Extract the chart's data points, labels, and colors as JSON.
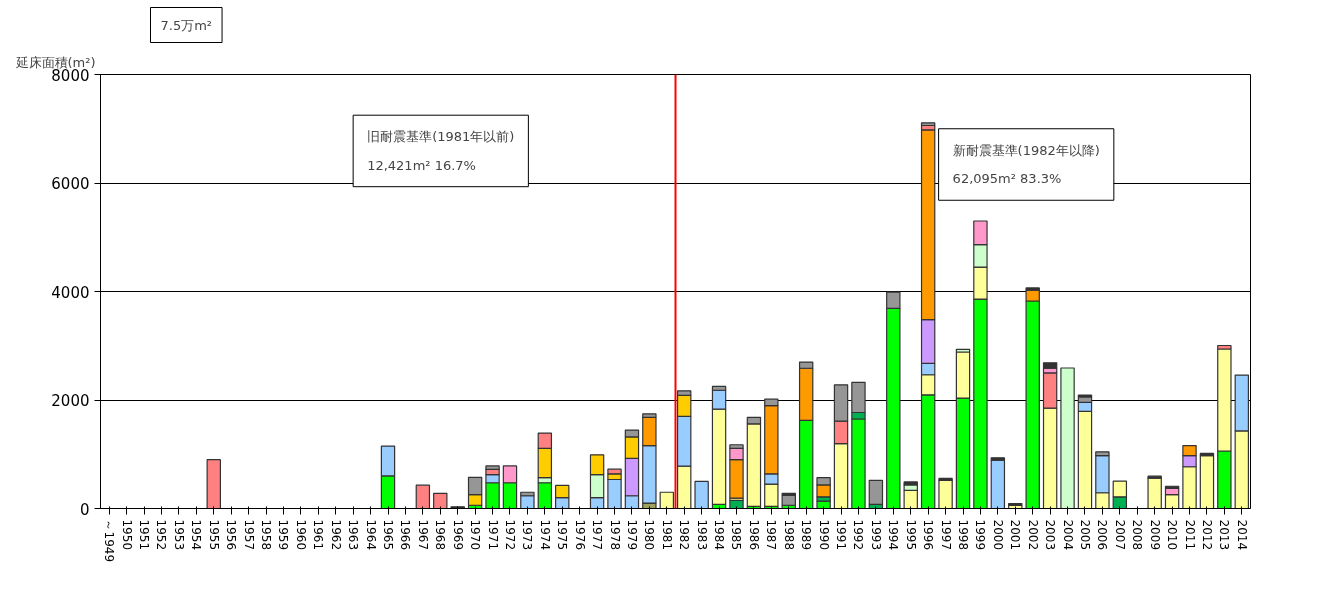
{
  "chart_data": {
    "type": "bar",
    "stacked": true,
    "title": "7.5万m²",
    "ylabel": "延床面積(m²)",
    "categories": [
      "～1949",
      "1950",
      "1951",
      "1952",
      "1953",
      "1954",
      "1955",
      "1956",
      "1957",
      "1958",
      "1959",
      "1960",
      "1961",
      "1962",
      "1963",
      "1964",
      "1965",
      "1966",
      "1967",
      "1968",
      "1969",
      "1970",
      "1971",
      "1972",
      "1973",
      "1974",
      "1975",
      "1976",
      "1977",
      "1978",
      "1979",
      "1980",
      "1981",
      "1982",
      "1983",
      "1984",
      "1985",
      "1986",
      "1987",
      "1988",
      "1989",
      "1990",
      "1991",
      "1992",
      "1993",
      "1994",
      "1995",
      "1996",
      "1997",
      "1998",
      "1999",
      "2000",
      "2001",
      "2002",
      "2003",
      "2004",
      "2005",
      "2006",
      "2007",
      "2008",
      "2009",
      "2010",
      "2011",
      "2012",
      "2013",
      "2014"
    ],
    "series": [
      {
        "color": "#00ff00",
        "values": [
          0,
          0,
          0,
          0,
          0,
          0,
          0,
          0,
          0,
          0,
          0,
          0,
          0,
          0,
          0,
          0,
          600,
          0,
          0,
          0,
          0,
          60,
          475,
          475,
          0,
          475,
          0,
          0,
          0,
          0,
          0,
          0,
          0,
          0,
          0,
          75,
          0,
          40,
          40,
          60,
          1625,
          135,
          0,
          1650,
          0,
          3690,
          0,
          2095,
          0,
          2035,
          3860,
          0,
          0,
          3825,
          0,
          0,
          0,
          0,
          0,
          0,
          0,
          0,
          0,
          0,
          1060,
          0
        ]
      },
      {
        "color": "#00b050",
        "values": [
          0,
          0,
          0,
          0,
          0,
          0,
          0,
          0,
          0,
          0,
          0,
          0,
          0,
          0,
          0,
          0,
          0,
          0,
          0,
          0,
          0,
          0,
          0,
          0,
          0,
          0,
          0,
          0,
          0,
          0,
          0,
          0,
          0,
          0,
          0,
          0,
          150,
          0,
          0,
          0,
          0,
          80,
          0,
          120,
          75,
          0,
          0,
          0,
          0,
          0,
          0,
          0,
          0,
          0,
          0,
          0,
          0,
          0,
          215,
          0,
          0,
          0,
          0,
          0,
          0,
          0
        ]
      },
      {
        "color": "#a0a060",
        "values": [
          0,
          0,
          0,
          0,
          0,
          0,
          0,
          0,
          0,
          0,
          0,
          0,
          0,
          0,
          0,
          0,
          0,
          0,
          0,
          0,
          0,
          0,
          0,
          0,
          0,
          0,
          0,
          0,
          0,
          0,
          0,
          100,
          0,
          0,
          0,
          0,
          0,
          0,
          0,
          0,
          0,
          0,
          0,
          0,
          0,
          0,
          0,
          0,
          0,
          0,
          0,
          0,
          0,
          0,
          0,
          0,
          0,
          0,
          0,
          0,
          0,
          0,
          0,
          0,
          0,
          0
        ]
      },
      {
        "color": "#ffff99",
        "values": [
          0,
          0,
          0,
          0,
          0,
          0,
          0,
          0,
          0,
          0,
          0,
          0,
          0,
          0,
          0,
          0,
          0,
          0,
          0,
          0,
          0,
          0,
          0,
          0,
          0,
          0,
          0,
          0,
          0,
          0,
          0,
          0,
          300,
          780,
          0,
          1755,
          40,
          1520,
          410,
          0,
          0,
          0,
          1195,
          0,
          0,
          0,
          335,
          370,
          520,
          850,
          590,
          0,
          55,
          0,
          1850,
          0,
          1790,
          290,
          290,
          0,
          560,
          255,
          770,
          975,
          1880,
          1430
        ]
      },
      {
        "color": "#99ccff",
        "values": [
          0,
          0,
          0,
          0,
          0,
          0,
          0,
          0,
          0,
          0,
          0,
          0,
          0,
          0,
          0,
          0,
          550,
          0,
          0,
          0,
          0,
          0,
          150,
          0,
          235,
          0,
          200,
          0,
          200,
          535,
          235,
          1060,
          0,
          920,
          500,
          350,
          0,
          0,
          190,
          0,
          0,
          0,
          0,
          0,
          0,
          0,
          0,
          210,
          0,
          0,
          0,
          890,
          0,
          0,
          0,
          0,
          165,
          685,
          0,
          0,
          0,
          0,
          0,
          0,
          0,
          1030
        ]
      },
      {
        "color": "#ccffcc",
        "values": [
          0,
          0,
          0,
          0,
          0,
          0,
          0,
          0,
          0,
          0,
          0,
          0,
          0,
          0,
          0,
          0,
          0,
          0,
          0,
          0,
          0,
          0,
          0,
          0,
          0,
          95,
          0,
          0,
          425,
          0,
          0,
          0,
          0,
          0,
          0,
          0,
          0,
          0,
          0,
          0,
          0,
          0,
          0,
          0,
          0,
          0,
          100,
          0,
          0,
          50,
          415,
          0,
          0,
          0,
          0,
          2590,
          0,
          0,
          0,
          0,
          0,
          0,
          0,
          0,
          0,
          0
        ]
      },
      {
        "color": "#cc99ff",
        "values": [
          0,
          0,
          0,
          0,
          0,
          0,
          0,
          0,
          0,
          0,
          0,
          0,
          0,
          0,
          0,
          0,
          0,
          0,
          0,
          0,
          0,
          0,
          0,
          0,
          0,
          0,
          0,
          0,
          0,
          0,
          690,
          0,
          0,
          0,
          0,
          0,
          0,
          0,
          0,
          0,
          0,
          0,
          0,
          0,
          0,
          0,
          0,
          805,
          0,
          0,
          0,
          0,
          0,
          0,
          0,
          0,
          0,
          0,
          0,
          0,
          0,
          0,
          205,
          0,
          0,
          0
        ]
      },
      {
        "color": "#ffcc00",
        "values": [
          0,
          0,
          0,
          0,
          0,
          0,
          0,
          0,
          0,
          0,
          0,
          0,
          0,
          0,
          0,
          0,
          0,
          0,
          0,
          0,
          0,
          195,
          0,
          0,
          0,
          540,
          225,
          0,
          365,
          105,
          395,
          0,
          0,
          385,
          0,
          0,
          0,
          0,
          0,
          0,
          0,
          0,
          0,
          0,
          0,
          0,
          0,
          0,
          0,
          0,
          0,
          0,
          0,
          0,
          0,
          0,
          0,
          0,
          0,
          0,
          0,
          0,
          0,
          0,
          0,
          0
        ]
      },
      {
        "color": "#ff9900",
        "values": [
          0,
          0,
          0,
          0,
          0,
          0,
          0,
          0,
          0,
          0,
          0,
          0,
          0,
          0,
          0,
          0,
          0,
          0,
          0,
          0,
          0,
          0,
          0,
          0,
          0,
          0,
          0,
          0,
          0,
          0,
          0,
          520,
          0,
          0,
          0,
          0,
          710,
          0,
          1255,
          0,
          960,
          220,
          0,
          0,
          0,
          0,
          0,
          3500,
          0,
          0,
          0,
          0,
          0,
          200,
          0,
          0,
          0,
          0,
          0,
          0,
          0,
          0,
          185,
          0,
          0,
          0
        ]
      },
      {
        "color": "#ff8080",
        "values": [
          0,
          0,
          0,
          0,
          0,
          0,
          900,
          0,
          0,
          0,
          0,
          0,
          0,
          0,
          0,
          0,
          0,
          0,
          430,
          280,
          0,
          0,
          95,
          0,
          0,
          280,
          0,
          0,
          0,
          85,
          0,
          0,
          0,
          0,
          0,
          0,
          0,
          0,
          0,
          0,
          0,
          0,
          415,
          0,
          0,
          0,
          0,
          80,
          0,
          0,
          0,
          0,
          0,
          0,
          650,
          0,
          0,
          0,
          0,
          0,
          0,
          0,
          0,
          0,
          65,
          0
        ]
      },
      {
        "color": "#ff99cc",
        "values": [
          0,
          0,
          0,
          0,
          0,
          0,
          0,
          0,
          0,
          0,
          0,
          0,
          0,
          0,
          0,
          0,
          0,
          0,
          0,
          0,
          0,
          0,
          0,
          310,
          0,
          0,
          0,
          0,
          0,
          0,
          0,
          0,
          0,
          0,
          0,
          0,
          210,
          0,
          0,
          0,
          0,
          0,
          0,
          0,
          0,
          0,
          0,
          0,
          0,
          0,
          435,
          0,
          0,
          0,
          85,
          0,
          0,
          0,
          0,
          0,
          0,
          115,
          0,
          0,
          0,
          0
        ]
      },
      {
        "color": "#969696",
        "values": [
          0,
          0,
          0,
          0,
          0,
          0,
          0,
          0,
          0,
          0,
          0,
          0,
          0,
          0,
          0,
          0,
          0,
          0,
          0,
          0,
          0,
          320,
          65,
          0,
          65,
          0,
          0,
          0,
          0,
          0,
          125,
          65,
          0,
          85,
          0,
          70,
          65,
          120,
          120,
          180,
          115,
          135,
          670,
          555,
          445,
          300,
          0,
          50,
          0,
          0,
          0,
          0,
          0,
          0,
          0,
          0,
          100,
          70,
          0,
          0,
          0,
          0,
          0,
          0,
          0,
          0
        ]
      },
      {
        "color": "#333333",
        "values": [
          0,
          0,
          0,
          0,
          0,
          0,
          0,
          0,
          0,
          0,
          0,
          0,
          0,
          0,
          0,
          0,
          0,
          0,
          0,
          0,
          30,
          0,
          0,
          0,
          0,
          0,
          0,
          0,
          0,
          0,
          0,
          0,
          0,
          0,
          0,
          0,
          0,
          0,
          0,
          40,
          0,
          0,
          0,
          0,
          0,
          0,
          55,
          0,
          35,
          0,
          0,
          45,
          35,
          40,
          100,
          0,
          35,
          0,
          0,
          0,
          35,
          40,
          0,
          40,
          0,
          0
        ]
      }
    ],
    "ylim": [
      0,
      8000
    ],
    "yticks": [
      0,
      2000,
      4000,
      6000,
      8000
    ],
    "grid": "y",
    "ref_lines": [
      {
        "axis": "x",
        "value": "1982",
        "color": "#ff0000"
      }
    ],
    "annotations": [
      "旧耐震基準(1981年以前)\n12,421m² 16.7%",
      "新耐震基準(1982年以降)\n62,095m² 83.3%"
    ]
  }
}
